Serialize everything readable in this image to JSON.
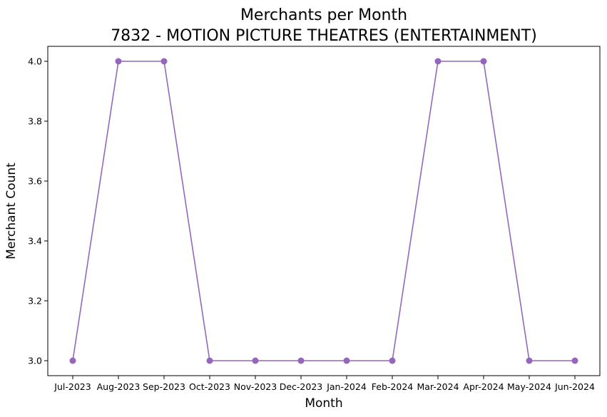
{
  "chart_data": {
    "type": "line",
    "title": "Merchants per Month",
    "subtitle": "7832 - MOTION PICTURE THEATRES (ENTERTAINMENT)",
    "xlabel": "Month",
    "ylabel": "Merchant Count",
    "categories": [
      "Jul-2023",
      "Aug-2023",
      "Sep-2023",
      "Oct-2023",
      "Nov-2023",
      "Dec-2023",
      "Jan-2024",
      "Feb-2024",
      "Mar-2024",
      "Apr-2024",
      "May-2024",
      "Jun-2024"
    ],
    "values": [
      3,
      4,
      4,
      3,
      3,
      3,
      3,
      3,
      4,
      4,
      3,
      3
    ],
    "yticks": [
      "3.0",
      "3.2",
      "3.4",
      "3.6",
      "3.8",
      "4.0"
    ],
    "ylim": [
      2.95,
      4.05
    ],
    "grid": false,
    "legend": "none",
    "color": "#9467bd",
    "marker": "circle"
  }
}
